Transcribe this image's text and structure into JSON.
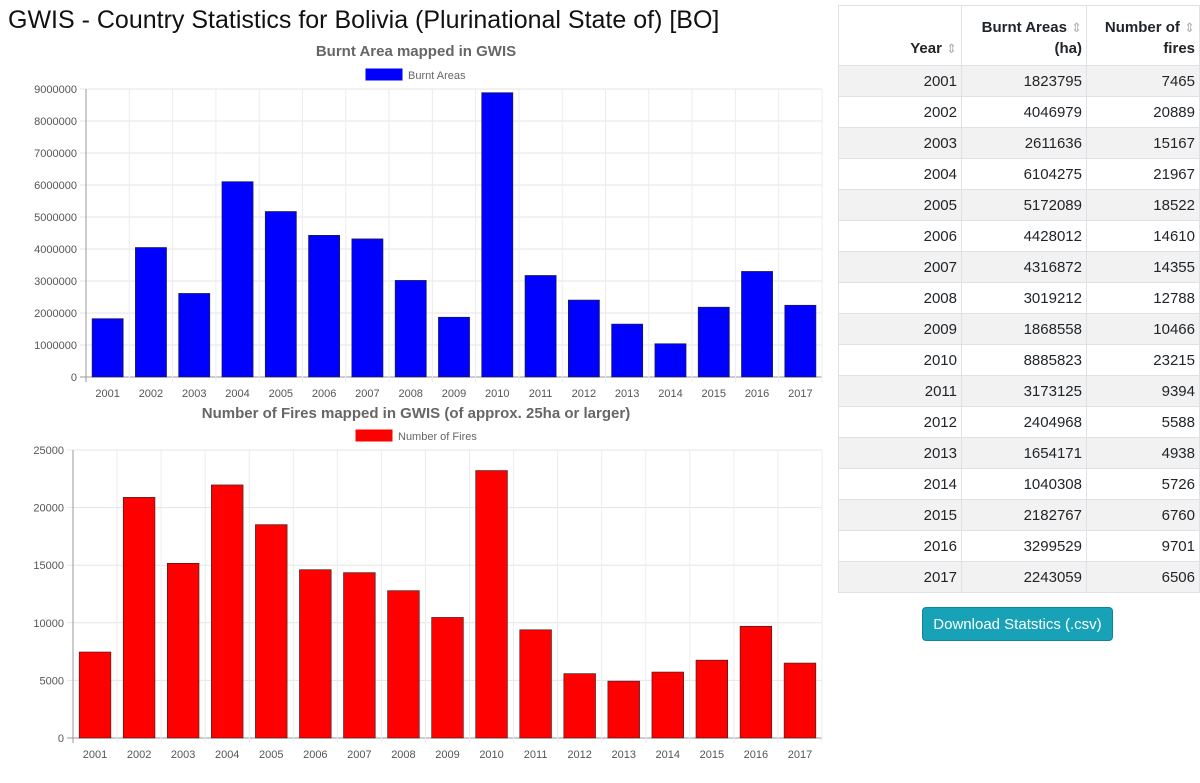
{
  "page": {
    "title": "GWIS - Country Statistics for Bolivia (Plurinational State of) [BO]"
  },
  "table": {
    "headers": {
      "year": "Year",
      "burnt": [
        "Burnt Areas",
        "(ha)"
      ],
      "fires": [
        "Number of",
        "fires"
      ]
    },
    "rows": [
      [
        "2001",
        "1823795",
        "7465"
      ],
      [
        "2002",
        "4046979",
        "20889"
      ],
      [
        "2003",
        "2611636",
        "15167"
      ],
      [
        "2004",
        "6104275",
        "21967"
      ],
      [
        "2005",
        "5172089",
        "18522"
      ],
      [
        "2006",
        "4428012",
        "14610"
      ],
      [
        "2007",
        "4316872",
        "14355"
      ],
      [
        "2008",
        "3019212",
        "12788"
      ],
      [
        "2009",
        "1868558",
        "10466"
      ],
      [
        "2010",
        "8885823",
        "23215"
      ],
      [
        "2011",
        "3173125",
        "9394"
      ],
      [
        "2012",
        "2404968",
        "5588"
      ],
      [
        "2013",
        "1654171",
        "4938"
      ],
      [
        "2014",
        "1040308",
        "5726"
      ],
      [
        "2015",
        "2182767",
        "6760"
      ],
      [
        "2016",
        "3299529",
        "9701"
      ],
      [
        "2017",
        "2243059",
        "6506"
      ]
    ]
  },
  "download": {
    "label": "Download Statstics (.csv)"
  },
  "icons": {
    "sort": "sort-arrows-icon"
  },
  "colors": {
    "burnt": "#0000ff",
    "fires": "#ff0000",
    "button": "#17a2b8"
  },
  "chart_data": [
    {
      "type": "bar",
      "title": "Burnt Area mapped in GWIS",
      "categories": [
        "2001",
        "2002",
        "2003",
        "2004",
        "2005",
        "2006",
        "2007",
        "2008",
        "2009",
        "2010",
        "2011",
        "2012",
        "2013",
        "2014",
        "2015",
        "2016",
        "2017"
      ],
      "series": [
        {
          "name": "Burnt Areas",
          "color": "#0000ff",
          "values": [
            1823795,
            4046979,
            2611636,
            6104275,
            5172089,
            4428012,
            4316872,
            3019212,
            1868558,
            8885823,
            3173125,
            2404968,
            1654171,
            1040308,
            2182767,
            3299529,
            2243059
          ]
        }
      ],
      "yticks": [
        "0",
        "1000000",
        "2000000",
        "3000000",
        "4000000",
        "5000000",
        "6000000",
        "7000000",
        "8000000",
        "9000000"
      ],
      "ylim": [
        0,
        9000000
      ],
      "legend": "top",
      "grid": true
    },
    {
      "type": "bar",
      "title": "Number of Fires mapped in GWIS (of approx. 25ha or larger)",
      "categories": [
        "2001",
        "2002",
        "2003",
        "2004",
        "2005",
        "2006",
        "2007",
        "2008",
        "2009",
        "2010",
        "2011",
        "2012",
        "2013",
        "2014",
        "2015",
        "2016",
        "2017"
      ],
      "series": [
        {
          "name": "Number of Fires",
          "color": "#ff0000",
          "values": [
            7465,
            20889,
            15167,
            21967,
            18522,
            14610,
            14355,
            12788,
            10466,
            23215,
            9394,
            5588,
            4938,
            5726,
            6760,
            9701,
            6506
          ]
        }
      ],
      "yticks": [
        "0",
        "5000",
        "10000",
        "15000",
        "20000",
        "25000"
      ],
      "ylim": [
        0,
        25000
      ],
      "legend": "top",
      "grid": true
    }
  ]
}
